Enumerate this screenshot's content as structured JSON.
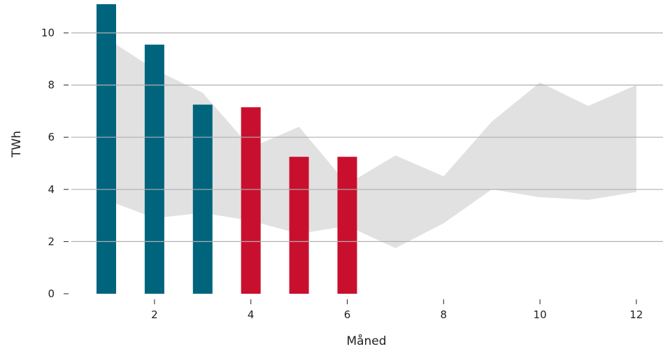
{
  "chart_data": {
    "type": "bar",
    "xlabel": "Måned",
    "ylabel": "TWh",
    "xlim": [
      0.3,
      12.5
    ],
    "ylim": [
      0,
      11.2
    ],
    "x_ticks": [
      2,
      4,
      6,
      8,
      10,
      12
    ],
    "y_ticks": [
      0,
      2,
      4,
      6,
      8,
      10
    ],
    "grid": "horizontal",
    "colors": {
      "bar_series_1": "#00647d",
      "bar_series_2": "#c8102e",
      "band": "#dcdcdc",
      "grid": "#b0b0b0"
    },
    "bars": [
      {
        "x": 1,
        "value": 11.1,
        "series": 1
      },
      {
        "x": 2,
        "value": 9.55,
        "series": 1
      },
      {
        "x": 3,
        "value": 7.25,
        "series": 1
      },
      {
        "x": 4,
        "value": 7.15,
        "series": 2
      },
      {
        "x": 5,
        "value": 5.25,
        "series": 2
      },
      {
        "x": 6,
        "value": 5.25,
        "series": 2
      }
    ],
    "band": {
      "x": [
        1,
        2,
        3,
        4,
        5,
        6,
        7,
        8,
        9,
        10,
        11,
        12
      ],
      "upper": [
        9.8,
        8.6,
        7.7,
        5.6,
        6.4,
        4.2,
        5.3,
        4.5,
        6.6,
        8.1,
        7.2,
        8.0
      ],
      "lower": [
        3.6,
        2.9,
        3.1,
        2.8,
        2.3,
        2.6,
        1.75,
        2.7,
        4.0,
        3.7,
        3.6,
        3.9
      ]
    }
  }
}
